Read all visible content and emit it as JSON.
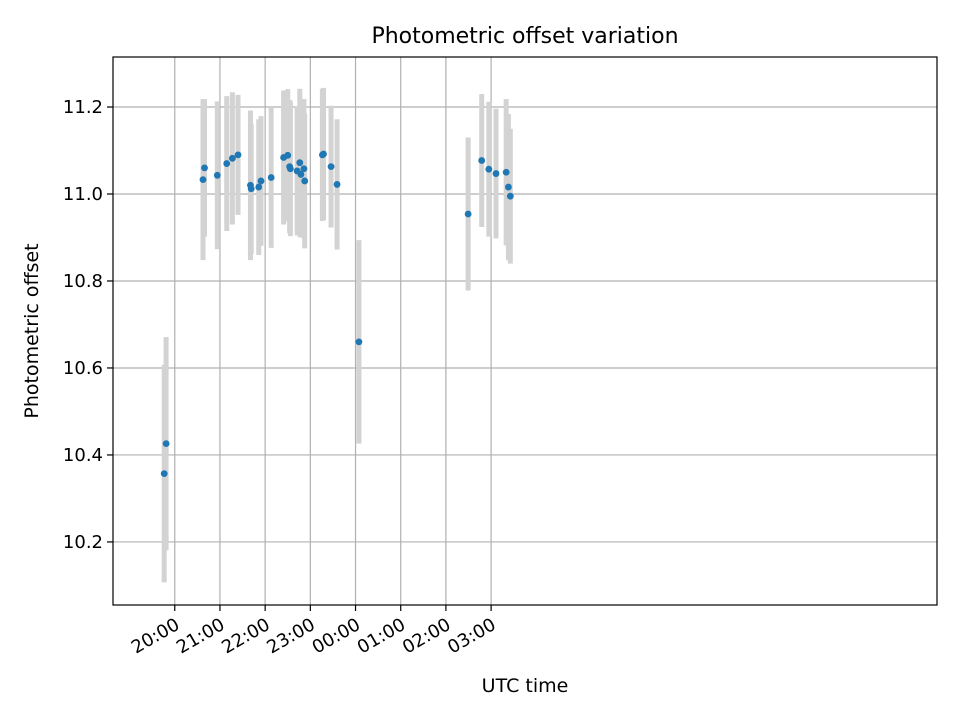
{
  "chart_data": {
    "type": "scatter",
    "title": "Photometric offset variation",
    "xlabel": "UTC time",
    "ylabel": "Photometric offset",
    "x_unit": "minutes after 19:00 UTC",
    "xlim": [
      -22,
      1072
    ],
    "ylim": [
      10.055,
      11.315
    ],
    "xticks": [
      {
        "value": 60,
        "label": "20:00"
      },
      {
        "value": 120,
        "label": "21:00"
      },
      {
        "value": 180,
        "label": "22:00"
      },
      {
        "value": 240,
        "label": "23:00"
      },
      {
        "value": 300,
        "label": "00:00"
      },
      {
        "value": 360,
        "label": "01:00"
      },
      {
        "value": 420,
        "label": "02:00"
      },
      {
        "value": 480,
        "label": "03:00"
      }
    ],
    "yticks": [
      {
        "value": 10.2,
        "label": "10.2"
      },
      {
        "value": 10.4,
        "label": "10.4"
      },
      {
        "value": 10.6,
        "label": "10.6"
      },
      {
        "value": 10.8,
        "label": "10.8"
      },
      {
        "value": 11.0,
        "label": "11.0"
      },
      {
        "value": 11.2,
        "label": "11.2"
      }
    ],
    "grid": true,
    "point_color": "#1f77b4",
    "errorbar_color": "#d3d3d3",
    "points": [
      {
        "x": 46.0,
        "y": 10.357,
        "err": 0.25
      },
      {
        "x": 48.5,
        "y": 10.426,
        "err": 0.245
      },
      {
        "x": 97.5,
        "y": 11.033,
        "err": 0.185
      },
      {
        "x": 99.5,
        "y": 11.06,
        "err": 0.158
      },
      {
        "x": 116.5,
        "y": 11.043,
        "err": 0.17
      },
      {
        "x": 129.0,
        "y": 11.07,
        "err": 0.155
      },
      {
        "x": 136.5,
        "y": 11.082,
        "err": 0.152
      },
      {
        "x": 144.0,
        "y": 11.09,
        "err": 0.138
      },
      {
        "x": 160.5,
        "y": 11.02,
        "err": 0.172
      },
      {
        "x": 161.5,
        "y": 11.012,
        "err": 0.15
      },
      {
        "x": 171.5,
        "y": 11.016,
        "err": 0.156
      },
      {
        "x": 174.5,
        "y": 11.03,
        "err": 0.149
      },
      {
        "x": 188.0,
        "y": 11.038,
        "err": 0.162
      },
      {
        "x": 204.5,
        "y": 11.084,
        "err": 0.154
      },
      {
        "x": 210.0,
        "y": 11.089,
        "err": 0.152
      },
      {
        "x": 212.5,
        "y": 11.063,
        "err": 0.153
      },
      {
        "x": 213.5,
        "y": 11.058,
        "err": 0.155
      },
      {
        "x": 222.5,
        "y": 11.053,
        "err": 0.148
      },
      {
        "x": 226.0,
        "y": 11.072,
        "err": 0.17
      },
      {
        "x": 227.5,
        "y": 11.045,
        "err": 0.145
      },
      {
        "x": 231.5,
        "y": 11.058,
        "err": 0.16
      },
      {
        "x": 232.5,
        "y": 11.03,
        "err": 0.155
      },
      {
        "x": 256.0,
        "y": 11.09,
        "err": 0.152
      },
      {
        "x": 257.5,
        "y": 11.092,
        "err": 0.152
      },
      {
        "x": 267.5,
        "y": 11.063,
        "err": 0.14
      },
      {
        "x": 275.5,
        "y": 11.022,
        "err": 0.15
      },
      {
        "x": 304.5,
        "y": 10.66,
        "err": 0.234
      },
      {
        "x": 449.5,
        "y": 10.954,
        "err": 0.176
      },
      {
        "x": 467.5,
        "y": 11.077,
        "err": 0.153
      },
      {
        "x": 477.0,
        "y": 11.057,
        "err": 0.155
      },
      {
        "x": 486.5,
        "y": 11.047,
        "err": 0.149
      },
      {
        "x": 500.0,
        "y": 11.05,
        "err": 0.168
      },
      {
        "x": 503.0,
        "y": 11.016,
        "err": 0.168
      },
      {
        "x": 505.5,
        "y": 10.995,
        "err": 0.155
      }
    ]
  }
}
